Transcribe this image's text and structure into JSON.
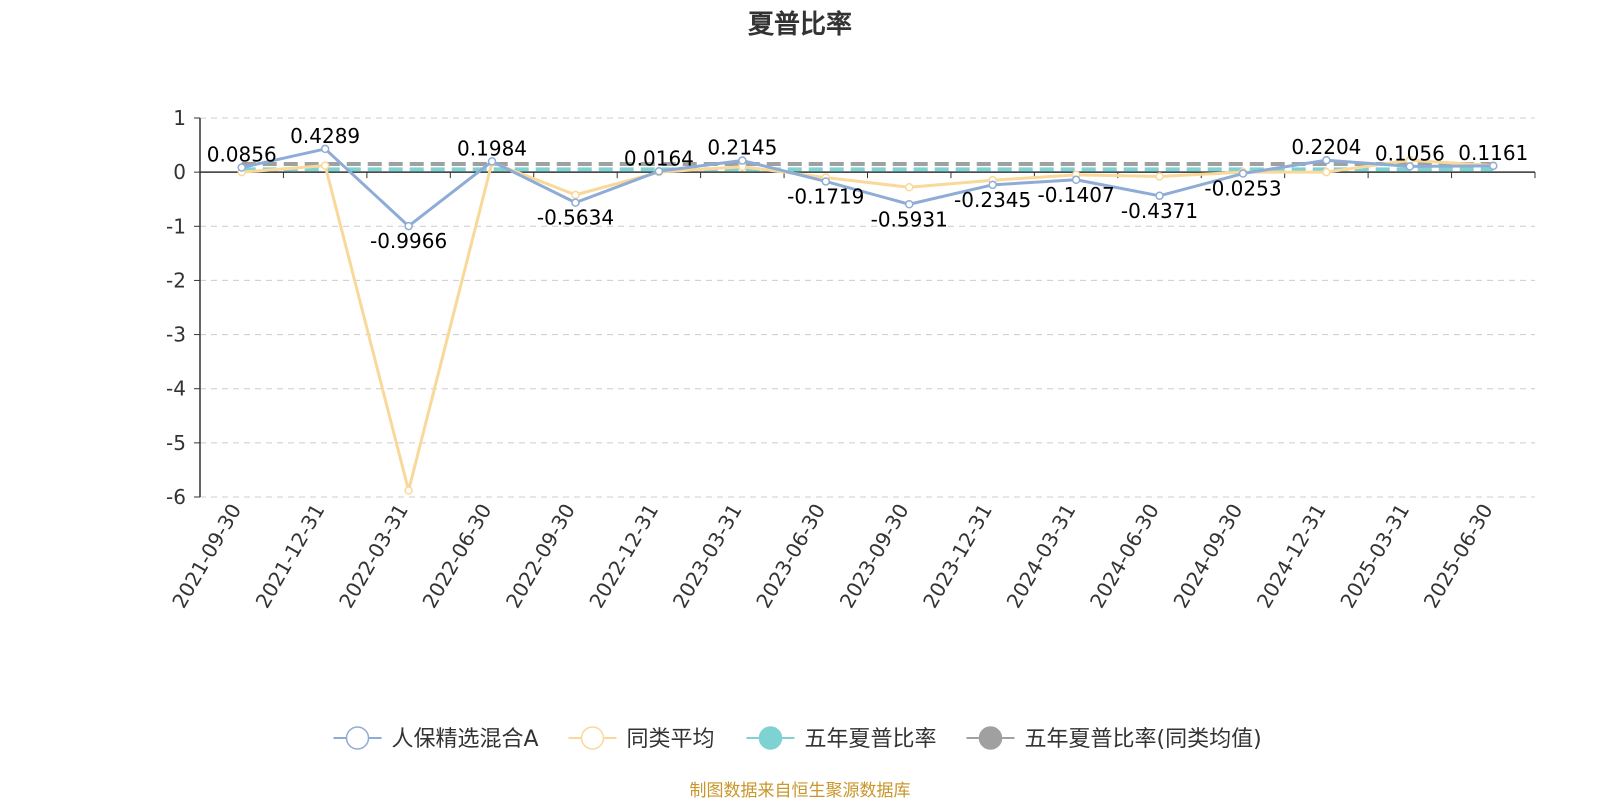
{
  "colors": {
    "fund": "#8eacd6",
    "category_avg": "#f9d99a",
    "five_year": "#7fd2d2",
    "five_year_avg": "#a0a0a0",
    "source": "#c8962a"
  },
  "source_text": "制图数据来自恒生聚源数据库",
  "chart_data": {
    "type": "line",
    "title": "夏普比率",
    "categories": [
      "2021-09-30",
      "2021-12-31",
      "2022-03-31",
      "2022-06-30",
      "2022-09-30",
      "2022-12-31",
      "2023-03-31",
      "2023-06-30",
      "2023-09-30",
      "2023-12-31",
      "2024-03-31",
      "2024-06-30",
      "2024-09-30",
      "2024-12-31",
      "2025-03-31",
      "2025-06-30"
    ],
    "ylim": [
      -6,
      1
    ],
    "yticks": [
      "1",
      "0",
      "-1",
      "-2",
      "-3",
      "-4",
      "-5",
      "-6"
    ],
    "grid": true,
    "legend_position": "bottom",
    "series": [
      {
        "name": "人保精选混合A",
        "values": [
          0.0856,
          0.4289,
          -0.9966,
          0.1984,
          -0.5634,
          0.0164,
          0.2145,
          -0.1719,
          -0.5931,
          -0.2345,
          -0.1407,
          -0.4371,
          -0.0253,
          0.2204,
          0.1056,
          0.1161
        ],
        "labels": [
          "0.0856",
          "0.4289",
          "-0.9966",
          "0.1984",
          "-0.5634",
          "0.0164",
          "0.2145",
          "-0.1719",
          "-0.5931",
          "-0.2345",
          "-0.1407",
          "-0.4371",
          "-0.0253",
          "0.2204",
          "0.1056",
          "0.1161"
        ]
      },
      {
        "name": "同类平均",
        "values": [
          0.0,
          0.12,
          -5.88,
          0.18,
          -0.42,
          0.0,
          0.1,
          -0.1,
          -0.28,
          -0.15,
          -0.05,
          -0.08,
          0.0,
          0.0,
          0.22,
          0.12
        ]
      },
      {
        "name": "五年夏普比率",
        "values": [
          0.05,
          0.05,
          0.05,
          0.05,
          0.05,
          0.05,
          0.05,
          0.05,
          0.05,
          0.05,
          0.05,
          0.05,
          0.05,
          0.05,
          0.05,
          0.05
        ]
      },
      {
        "name": "五年夏普比率(同类均值)",
        "values": [
          0.15,
          0.15,
          0.15,
          0.15,
          0.15,
          0.15,
          0.15,
          0.15,
          0.15,
          0.15,
          0.15,
          0.15,
          0.15,
          0.15,
          0.15,
          0.15
        ]
      }
    ]
  }
}
